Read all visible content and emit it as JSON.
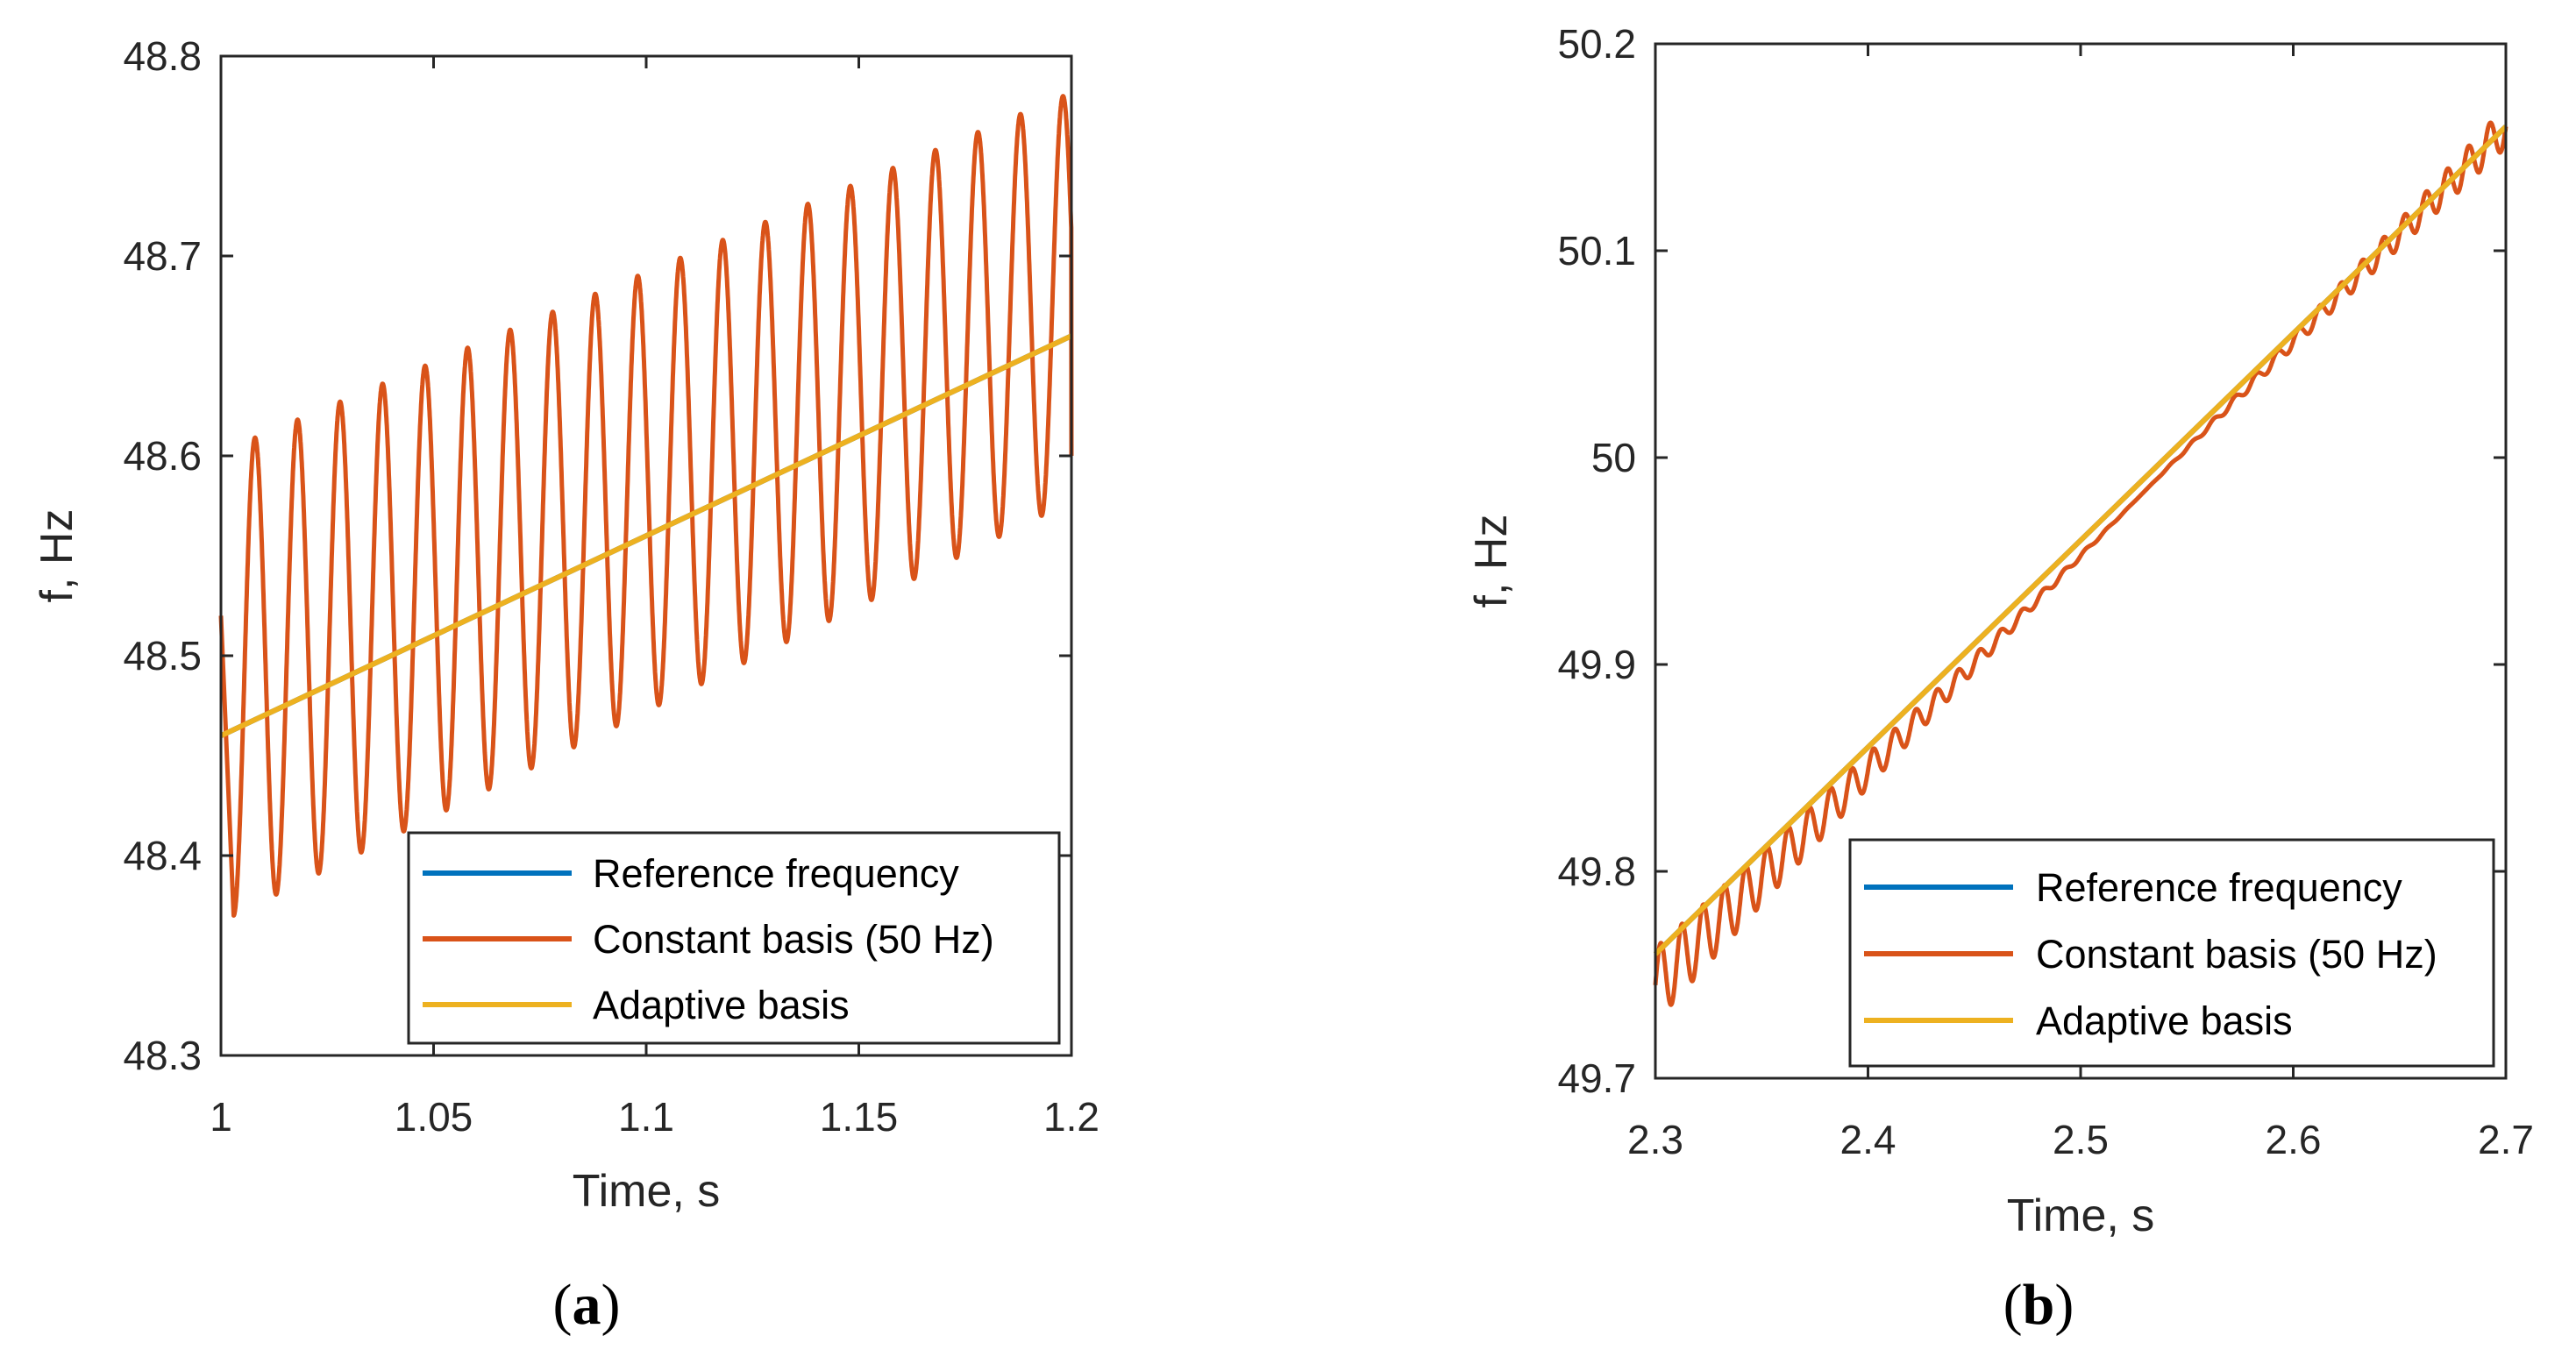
{
  "chart_data": [
    {
      "type": "line",
      "panel_label": "a",
      "xlabel": "Time, s",
      "ylabel": "f, Hz",
      "xlim": [
        1,
        1.2
      ],
      "ylim": [
        48.3,
        48.8
      ],
      "xticks": [
        1,
        1.05,
        1.1,
        1.15,
        1.2
      ],
      "xtick_labels": [
        "1",
        "1.05",
        "1.1",
        "1.15",
        "1.2"
      ],
      "yticks": [
        48.3,
        48.4,
        48.5,
        48.6,
        48.7,
        48.8
      ],
      "ytick_labels": [
        "48.3",
        "48.4",
        "48.5",
        "48.6",
        "48.7",
        "48.8"
      ],
      "grid": false,
      "legend_position": "bottom-right",
      "series": [
        {
          "name": "Reference frequency",
          "color": "#0072BD",
          "kind": "linear",
          "start": [
            1.0,
            48.46
          ],
          "end": [
            1.2,
            48.66
          ]
        },
        {
          "name": "Constant basis (50 Hz)",
          "color": "#D95319",
          "kind": "oscillation",
          "start": [
            1.0,
            48.52
          ],
          "end": [
            1.2,
            48.6
          ],
          "first_valley": [
            1.003,
            48.37
          ],
          "first_peak": [
            1.009,
            48.61
          ],
          "last_peak": [
            1.198,
            48.78
          ],
          "last_valley": [
            1.193,
            48.57
          ],
          "cycles": 20
        },
        {
          "name": "Adaptive basis",
          "color": "#EDB120",
          "kind": "linear",
          "start": [
            1.0,
            48.46
          ],
          "end": [
            1.2,
            48.66
          ]
        }
      ]
    },
    {
      "type": "line",
      "panel_label": "b",
      "xlabel": "Time, s",
      "ylabel": "f, Hz",
      "xlim": [
        2.3,
        2.7
      ],
      "ylim": [
        49.7,
        50.2
      ],
      "xticks": [
        2.3,
        2.4,
        2.5,
        2.6,
        2.7
      ],
      "xtick_labels": [
        "2.3",
        "2.4",
        "2.5",
        "2.6",
        "2.7"
      ],
      "yticks": [
        49.7,
        49.8,
        49.9,
        50,
        50.1,
        50.2
      ],
      "ytick_labels": [
        "49.7",
        "49.8",
        "49.9",
        "50",
        "50.1",
        "50.2"
      ],
      "grid": false,
      "legend_position": "bottom-right",
      "series": [
        {
          "name": "Reference frequency",
          "color": "#0072BD",
          "kind": "linear",
          "start": [
            2.3,
            49.76
          ],
          "end": [
            2.7,
            50.16
          ]
        },
        {
          "name": "Constant basis (50 Hz)",
          "color": "#D95319",
          "kind": "decaying_oscillation",
          "start": [
            2.3,
            49.745
          ],
          "end": [
            2.7,
            50.16
          ],
          "amplitude_start": 0.018,
          "amplitude_min": 0.0,
          "amplitude_end": 0.01,
          "center_x": 2.53,
          "cycles": 40
        },
        {
          "name": "Adaptive basis",
          "color": "#EDB120",
          "kind": "linear",
          "start": [
            2.3,
            49.76
          ],
          "end": [
            2.7,
            50.16
          ]
        }
      ]
    }
  ]
}
